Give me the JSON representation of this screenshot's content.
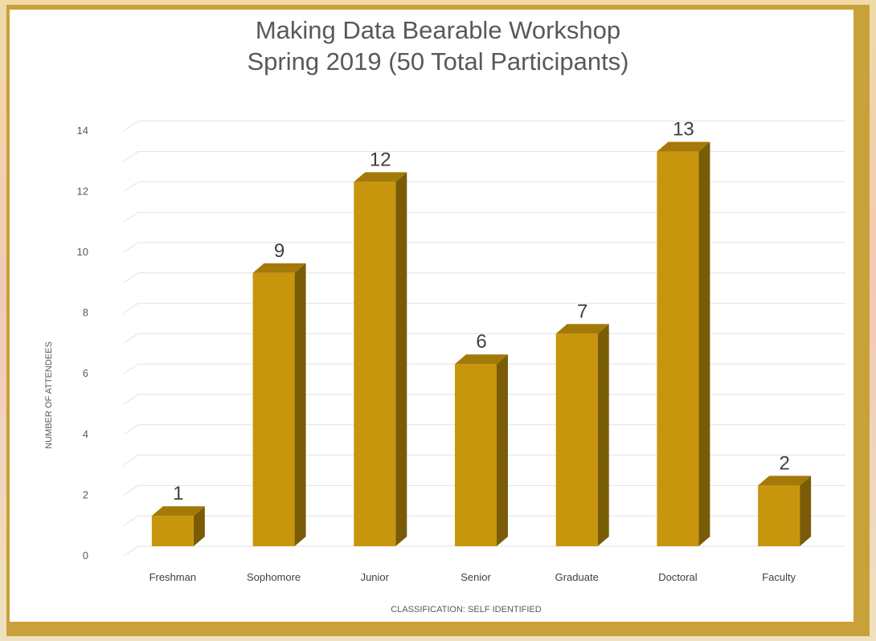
{
  "chart_data": {
    "type": "bar",
    "title": "Making Data Bearable Workshop",
    "subtitle": "Spring 2019 (50 Total Participants)",
    "xlabel": "CLASSIFICATION: SELF IDENTIFIED",
    "ylabel": "NUMBER OF ATTENDEES",
    "categories": [
      "Freshman",
      "Sophomore",
      "Junior",
      "Senior",
      "Graduate",
      "Doctoral",
      "Faculty"
    ],
    "values": [
      1,
      9,
      12,
      6,
      7,
      13,
      2
    ],
    "ylim": [
      0,
      14
    ],
    "yticks": [
      "0",
      "2",
      "4",
      "6",
      "8",
      "10",
      "12",
      "14"
    ],
    "grid": true,
    "legend": "none",
    "bar_color": "#c8960c",
    "bar_side_color": "#7a5c06",
    "bar_top_color": "#a37a08"
  }
}
